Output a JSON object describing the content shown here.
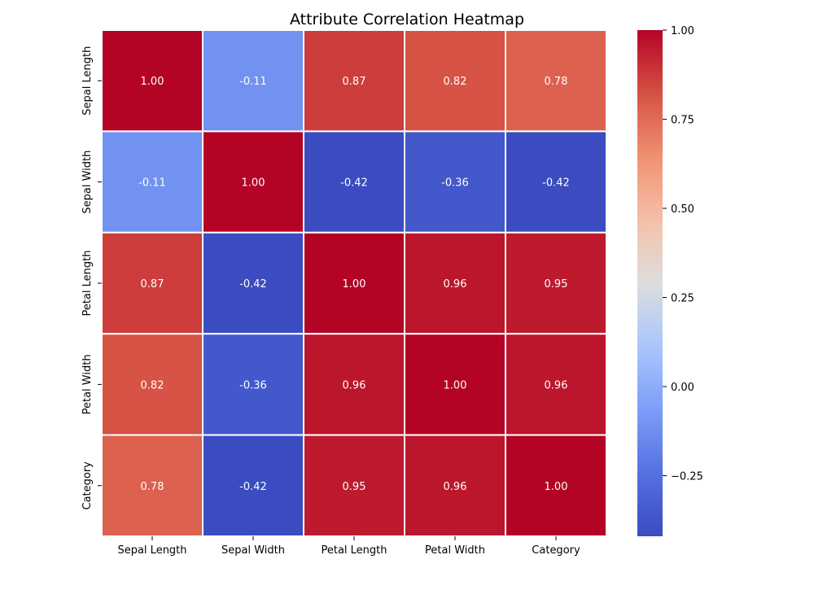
{
  "chart_data": {
    "type": "heatmap",
    "title": "Attribute Correlation Heatmap",
    "xlabel": "",
    "ylabel": "",
    "x_categories": [
      "Sepal Length",
      "Sepal Width",
      "Petal Length",
      "Petal Width",
      "Category"
    ],
    "y_categories": [
      "Sepal Length",
      "Sepal Width",
      "Petal Length",
      "Petal Width",
      "Category"
    ],
    "values": [
      [
        1.0,
        -0.11,
        0.87,
        0.82,
        0.78
      ],
      [
        -0.11,
        1.0,
        -0.42,
        -0.36,
        -0.42
      ],
      [
        0.87,
        -0.42,
        1.0,
        0.96,
        0.95
      ],
      [
        0.82,
        -0.36,
        0.96,
        1.0,
        0.96
      ],
      [
        0.78,
        -0.42,
        0.95,
        0.96,
        1.0
      ]
    ],
    "value_labels": [
      [
        "1.00",
        "-0.11",
        "0.87",
        "0.82",
        "0.78"
      ],
      [
        "-0.11",
        "1.00",
        "-0.42",
        "-0.36",
        "-0.42"
      ],
      [
        "0.87",
        "-0.42",
        "1.00",
        "0.96",
        "0.95"
      ],
      [
        "0.82",
        "-0.36",
        "0.96",
        "1.00",
        "0.96"
      ],
      [
        "0.78",
        "-0.42",
        "0.95",
        "0.96",
        "1.00"
      ]
    ],
    "colormap": "coolwarm",
    "color_range": [
      -0.42,
      1.0
    ],
    "colorbar_ticks": [
      -0.25,
      0.0,
      0.25,
      0.5,
      0.75,
      1.0
    ],
    "colorbar_tick_labels": [
      "−0.25",
      "0.00",
      "0.25",
      "0.50",
      "0.75",
      "1.00"
    ],
    "cell_border_color": "#ffffff",
    "label_color": "#ffffff",
    "grid": false
  }
}
